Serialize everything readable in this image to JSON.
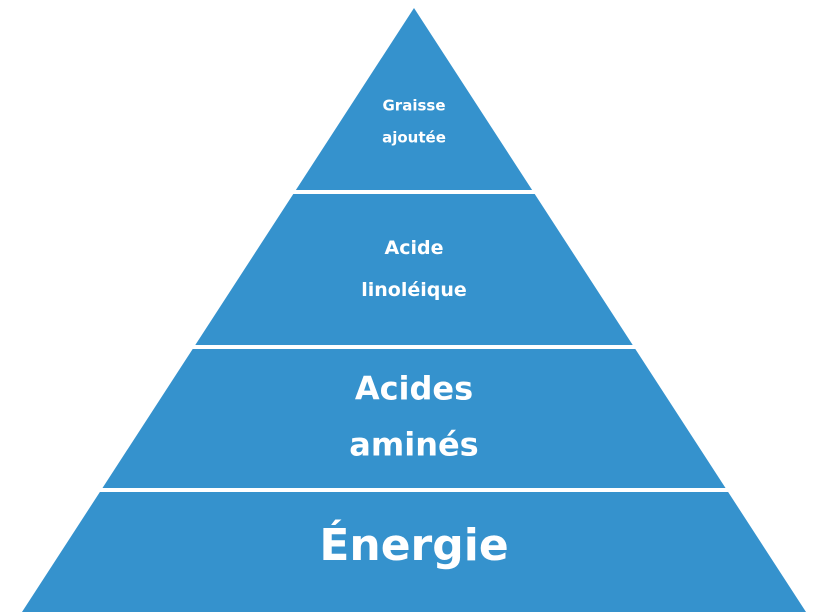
{
  "levels": [
    {
      "lines": [
        "Graisse",
        "ajoutée"
      ]
    },
    {
      "lines": [
        "Acide",
        "linoléique"
      ]
    },
    {
      "lines": [
        "Acides",
        "aminés"
      ]
    },
    {
      "lines": [
        "Énergie"
      ]
    }
  ]
}
